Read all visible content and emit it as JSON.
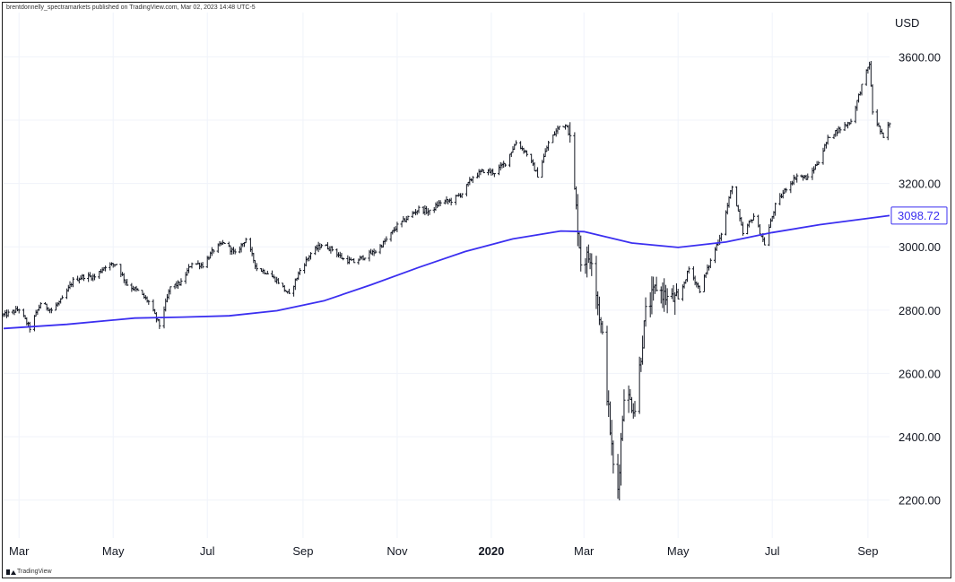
{
  "header": {
    "text": "brentdonnelly_spectramarkets published on TradingView.com, Mar 02, 2023 14:48 UTC-5"
  },
  "footer": {
    "brand": "TradingView"
  },
  "colors": {
    "candles": "#131722",
    "ma_line": "#3b2ff0",
    "grid": "#f0f3fa",
    "label_border": "#3b2ff0",
    "label_text": "#3b2ff0"
  },
  "chart_data": {
    "type": "line",
    "currency_label": "USD",
    "ylim": [
      2080,
      3740
    ],
    "y_ticks": [
      2200,
      2400,
      2600,
      2800,
      3000,
      3200,
      3400,
      3600
    ],
    "y_tick_labels": [
      "2200.00",
      "2400.00",
      "2600.00",
      "2800.00",
      "3000.00",
      "3200.00",
      "",
      "3600.00"
    ],
    "x_range": [
      "2019-02-19",
      "2020-09-15"
    ],
    "x_ticks": [
      {
        "date": "2019-03-01",
        "label": "Mar",
        "bold": false
      },
      {
        "date": "2019-05-01",
        "label": "May",
        "bold": false
      },
      {
        "date": "2019-07-01",
        "label": "Jul",
        "bold": false
      },
      {
        "date": "2019-09-01",
        "label": "Sep",
        "bold": false
      },
      {
        "date": "2019-11-01",
        "label": "Nov",
        "bold": false
      },
      {
        "date": "2020-01-01",
        "label": "2020",
        "bold": true
      },
      {
        "date": "2020-03-01",
        "label": "Mar",
        "bold": false
      },
      {
        "date": "2020-05-01",
        "label": "May",
        "bold": false
      },
      {
        "date": "2020-07-01",
        "label": "Jul",
        "bold": false
      },
      {
        "date": "2020-09-01",
        "label": "Sep",
        "bold": false
      }
    ],
    "price_series": {
      "type": "ohlc",
      "closes": [
        [
          "2019-02-20",
          2785
        ],
        [
          "2019-03-01",
          2803
        ],
        [
          "2019-03-08",
          2743
        ],
        [
          "2019-03-15",
          2822
        ],
        [
          "2019-03-22",
          2800
        ],
        [
          "2019-03-29",
          2834
        ],
        [
          "2019-04-05",
          2893
        ],
        [
          "2019-04-12",
          2907
        ],
        [
          "2019-04-19",
          2905
        ],
        [
          "2019-04-26",
          2940
        ],
        [
          "2019-05-03",
          2946
        ],
        [
          "2019-05-10",
          2881
        ],
        [
          "2019-05-17",
          2860
        ],
        [
          "2019-05-24",
          2826
        ],
        [
          "2019-05-31",
          2752
        ],
        [
          "2019-06-07",
          2873
        ],
        [
          "2019-06-14",
          2886
        ],
        [
          "2019-06-21",
          2950
        ],
        [
          "2019-06-28",
          2942
        ],
        [
          "2019-07-05",
          2990
        ],
        [
          "2019-07-12",
          3014
        ],
        [
          "2019-07-19",
          2977
        ],
        [
          "2019-07-26",
          3025
        ],
        [
          "2019-08-02",
          2932
        ],
        [
          "2019-08-09",
          2918
        ],
        [
          "2019-08-16",
          2889
        ],
        [
          "2019-08-23",
          2847
        ],
        [
          "2019-08-30",
          2926
        ],
        [
          "2019-09-06",
          2979
        ],
        [
          "2019-09-13",
          3007
        ],
        [
          "2019-09-20",
          2992
        ],
        [
          "2019-09-27",
          2961
        ],
        [
          "2019-10-04",
          2952
        ],
        [
          "2019-10-11",
          2970
        ],
        [
          "2019-10-18",
          2986
        ],
        [
          "2019-10-25",
          3022
        ],
        [
          "2019-11-01",
          3066
        ],
        [
          "2019-11-08",
          3093
        ],
        [
          "2019-11-15",
          3120
        ],
        [
          "2019-11-22",
          3110
        ],
        [
          "2019-11-29",
          3141
        ],
        [
          "2019-12-06",
          3146
        ],
        [
          "2019-12-13",
          3169
        ],
        [
          "2019-12-20",
          3221
        ],
        [
          "2019-12-27",
          3240
        ],
        [
          "2020-01-03",
          3235
        ],
        [
          "2020-01-10",
          3265
        ],
        [
          "2020-01-17",
          3330
        ],
        [
          "2020-01-24",
          3295
        ],
        [
          "2020-01-31",
          3226
        ],
        [
          "2020-02-07",
          3328
        ],
        [
          "2020-02-14",
          3380
        ],
        [
          "2020-02-19",
          3386
        ],
        [
          "2020-02-21",
          3338
        ],
        [
          "2020-02-28",
          2954
        ],
        [
          "2020-03-06",
          2972
        ],
        [
          "2020-03-13",
          2711
        ],
        [
          "2020-03-20",
          2305
        ],
        [
          "2020-03-23",
          2237
        ],
        [
          "2020-03-27",
          2541
        ],
        [
          "2020-04-03",
          2489
        ],
        [
          "2020-04-10",
          2790
        ],
        [
          "2020-04-17",
          2875
        ],
        [
          "2020-04-24",
          2837
        ],
        [
          "2020-05-01",
          2831
        ],
        [
          "2020-05-08",
          2930
        ],
        [
          "2020-05-15",
          2864
        ],
        [
          "2020-05-22",
          2955
        ],
        [
          "2020-05-29",
          3044
        ],
        [
          "2020-06-05",
          3194
        ],
        [
          "2020-06-12",
          3041
        ],
        [
          "2020-06-19",
          3098
        ],
        [
          "2020-06-26",
          3009
        ],
        [
          "2020-07-03",
          3130
        ],
        [
          "2020-07-10",
          3185
        ],
        [
          "2020-07-17",
          3225
        ],
        [
          "2020-07-24",
          3216
        ],
        [
          "2020-07-31",
          3271
        ],
        [
          "2020-08-07",
          3351
        ],
        [
          "2020-08-14",
          3373
        ],
        [
          "2020-08-21",
          3397
        ],
        [
          "2020-08-28",
          3508
        ],
        [
          "2020-09-02",
          3580
        ],
        [
          "2020-09-04",
          3427
        ],
        [
          "2020-09-11",
          3341
        ],
        [
          "2020-09-14",
          3384
        ]
      ]
    },
    "moving_average": {
      "name": "",
      "last_value": 3098.72,
      "last_value_label": "3098.72",
      "points": [
        [
          "2019-02-19",
          2742
        ],
        [
          "2019-04-01",
          2755
        ],
        [
          "2019-05-15",
          2775
        ],
        [
          "2019-06-15",
          2778
        ],
        [
          "2019-07-15",
          2782
        ],
        [
          "2019-08-15",
          2798
        ],
        [
          "2019-09-15",
          2830
        ],
        [
          "2019-10-15",
          2880
        ],
        [
          "2019-11-15",
          2935
        ],
        [
          "2019-12-15",
          2985
        ],
        [
          "2020-01-15",
          3025
        ],
        [
          "2020-02-15",
          3050
        ],
        [
          "2020-03-01",
          3048
        ],
        [
          "2020-04-01",
          3012
        ],
        [
          "2020-05-01",
          2998
        ],
        [
          "2020-06-01",
          3015
        ],
        [
          "2020-07-01",
          3045
        ],
        [
          "2020-08-01",
          3070
        ],
        [
          "2020-09-15",
          3098.72
        ]
      ]
    }
  }
}
